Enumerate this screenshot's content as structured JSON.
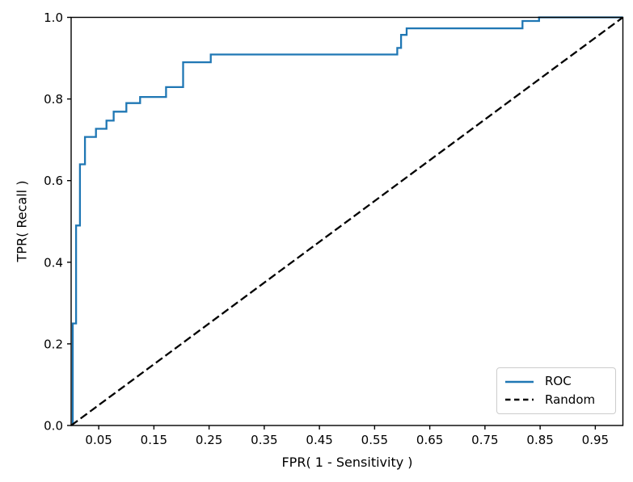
{
  "figure": {
    "background": "#ffffff"
  },
  "axes": {
    "xlabel": "FPR( 1 - Sensitivity )",
    "ylabel": "TPR( Recall )",
    "x_tick_labels": [
      "0.05",
      "0.15",
      "0.25",
      "0.35",
      "0.45",
      "0.55",
      "0.65",
      "0.75",
      "0.85",
      "0.95"
    ],
    "x_tick_values": [
      0.05,
      0.15,
      0.25,
      0.35,
      0.45,
      0.55,
      0.65,
      0.75,
      0.85,
      0.95
    ],
    "y_tick_labels": [
      "0.0",
      "0.2",
      "0.4",
      "0.6",
      "0.8",
      "1.0"
    ],
    "y_tick_values": [
      0.0,
      0.2,
      0.4,
      0.6,
      0.8,
      1.0
    ],
    "spine_color": "#000000"
  },
  "legend": {
    "position": "lower right",
    "entries": [
      {
        "label": "ROC",
        "color": "#1f77b4",
        "style": "solid"
      },
      {
        "label": "Random",
        "color": "#000000",
        "style": "dashed"
      }
    ]
  },
  "chart_data": {
    "type": "line",
    "title": "",
    "xlabel": "FPR( 1 - Sensitivity )",
    "ylabel": "TPR( Recall )",
    "xlim": [
      0,
      1
    ],
    "ylim": [
      0,
      1
    ],
    "grid": false,
    "legend_position": "lower right",
    "series": [
      {
        "name": "ROC",
        "color": "#1f77b4",
        "style": "solid",
        "points": [
          [
            0.003,
            0.0
          ],
          [
            0.003,
            0.25
          ],
          [
            0.009,
            0.25
          ],
          [
            0.009,
            0.49
          ],
          [
            0.016,
            0.49
          ],
          [
            0.016,
            0.64
          ],
          [
            0.025,
            0.64
          ],
          [
            0.025,
            0.707
          ],
          [
            0.045,
            0.707
          ],
          [
            0.045,
            0.727
          ],
          [
            0.064,
            0.727
          ],
          [
            0.064,
            0.747
          ],
          [
            0.077,
            0.747
          ],
          [
            0.077,
            0.769
          ],
          [
            0.1,
            0.769
          ],
          [
            0.1,
            0.79
          ],
          [
            0.125,
            0.79
          ],
          [
            0.125,
            0.805
          ],
          [
            0.172,
            0.805
          ],
          [
            0.172,
            0.829
          ],
          [
            0.203,
            0.829
          ],
          [
            0.203,
            0.89
          ],
          [
            0.253,
            0.89
          ],
          [
            0.253,
            0.909
          ],
          [
            0.591,
            0.909
          ],
          [
            0.591,
            0.925
          ],
          [
            0.598,
            0.925
          ],
          [
            0.598,
            0.957
          ],
          [
            0.608,
            0.957
          ],
          [
            0.608,
            0.973
          ],
          [
            0.818,
            0.973
          ],
          [
            0.818,
            0.991
          ],
          [
            0.848,
            0.991
          ],
          [
            0.848,
            1.0
          ],
          [
            1.0,
            1.0
          ]
        ]
      },
      {
        "name": "Random",
        "color": "#000000",
        "style": "dashed",
        "points": [
          [
            0.0,
            0.0
          ],
          [
            1.0,
            1.0
          ]
        ]
      }
    ]
  }
}
